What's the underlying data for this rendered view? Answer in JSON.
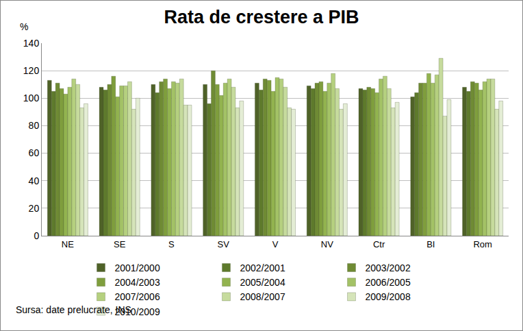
{
  "chart_data": {
    "type": "bar",
    "title": "Rata de crestere a PIB",
    "y_label": "%",
    "annotations": [
      "Sursa: date prelucrate, INS"
    ],
    "categories": [
      "NE",
      "SE",
      "S",
      "SV",
      "V",
      "NV",
      "Ctr",
      "BI",
      "Rom"
    ],
    "series": [
      {
        "name": "2001/2000",
        "color": "#4F6228",
        "values": [
          113,
          108,
          110,
          110,
          111,
          109,
          107,
          101,
          108
        ]
      },
      {
        "name": "2002/2001",
        "color": "#5E7A2C",
        "values": [
          105,
          106,
          104,
          96,
          106,
          107,
          106,
          104,
          105
        ]
      },
      {
        "name": "2003/2002",
        "color": "#6F8B34",
        "values": [
          111,
          110,
          112,
          120,
          114,
          111,
          108,
          111,
          112
        ]
      },
      {
        "name": "2004/2003",
        "color": "#7F9E3D",
        "values": [
          107,
          116,
          114,
          110,
          113,
          112,
          107,
          111,
          111
        ]
      },
      {
        "name": "2005/2004",
        "color": "#92B34F",
        "values": [
          103,
          101,
          107,
          102,
          105,
          105,
          104,
          118,
          106
        ]
      },
      {
        "name": "2006/2005",
        "color": "#A3C266",
        "values": [
          108,
          109,
          112,
          111,
          115,
          111,
          114,
          111,
          112
        ]
      },
      {
        "name": "2007/2006",
        "color": "#B5D07F",
        "values": [
          114,
          109,
          111,
          114,
          114,
          118,
          116,
          117,
          114
        ]
      },
      {
        "name": "2008/2007",
        "color": "#C6DB9D",
        "values": [
          110,
          112,
          114,
          108,
          108,
          107,
          107,
          129,
          114
        ]
      },
      {
        "name": "2009/2008",
        "color": "#D5E4B9",
        "values": [
          93,
          92,
          95,
          93,
          93,
          92,
          93,
          87,
          92
        ]
      },
      {
        "name": "2010/2009",
        "color": "#E4EDD5",
        "values": [
          96,
          100,
          95,
          98,
          92,
          96,
          97,
          99,
          98
        ]
      }
    ],
    "ylim": [
      0,
      140
    ],
    "yticks": [
      0,
      20,
      40,
      60,
      80,
      100,
      120,
      140
    ],
    "grid": true,
    "legend": "bottom"
  }
}
